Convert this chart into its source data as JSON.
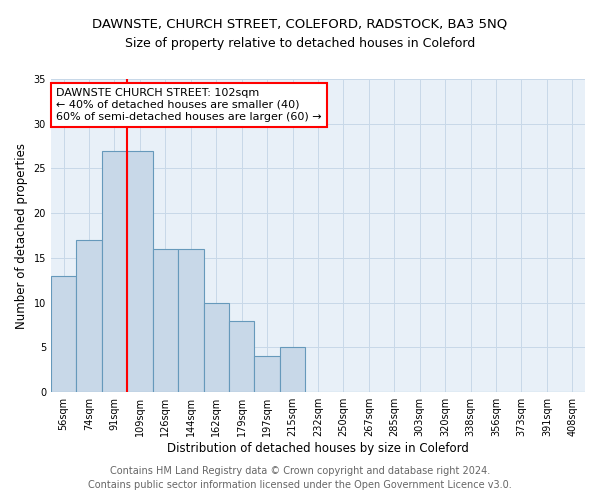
{
  "title": "DAWNSTE, CHURCH STREET, COLEFORD, RADSTOCK, BA3 5NQ",
  "subtitle": "Size of property relative to detached houses in Coleford",
  "xlabel": "Distribution of detached houses by size in Coleford",
  "ylabel": "Number of detached properties",
  "footer_line1": "Contains HM Land Registry data © Crown copyright and database right 2024.",
  "footer_line2": "Contains public sector information licensed under the Open Government Licence v3.0.",
  "bin_labels": [
    "56sqm",
    "74sqm",
    "91sqm",
    "109sqm",
    "126sqm",
    "144sqm",
    "162sqm",
    "179sqm",
    "197sqm",
    "215sqm",
    "232sqm",
    "250sqm",
    "267sqm",
    "285sqm",
    "303sqm",
    "320sqm",
    "338sqm",
    "356sqm",
    "373sqm",
    "391sqm",
    "408sqm"
  ],
  "bar_values": [
    13,
    17,
    27,
    27,
    16,
    16,
    10,
    8,
    4,
    5,
    0,
    0,
    0,
    0,
    0,
    0,
    0,
    0,
    0,
    0,
    0
  ],
  "bar_color": "#c8d8e8",
  "bar_edge_color": "#6699bb",
  "vline_color": "red",
  "annotation_line1": "DAWNSTE CHURCH STREET: 102sqm",
  "annotation_line2": "← 40% of detached houses are smaller (40)",
  "annotation_line3": "60% of semi-detached houses are larger (60) →",
  "annotation_box_color": "white",
  "annotation_box_edge": "red",
  "ylim": [
    0,
    35
  ],
  "yticks": [
    0,
    5,
    10,
    15,
    20,
    25,
    30,
    35
  ],
  "grid_color": "#c8d8e8",
  "bg_color": "#e8f0f8",
  "title_fontsize": 9.5,
  "subtitle_fontsize": 9,
  "annotation_fontsize": 8,
  "tick_fontsize": 7,
  "xlabel_fontsize": 8.5,
  "ylabel_fontsize": 8.5,
  "footer_fontsize": 7
}
